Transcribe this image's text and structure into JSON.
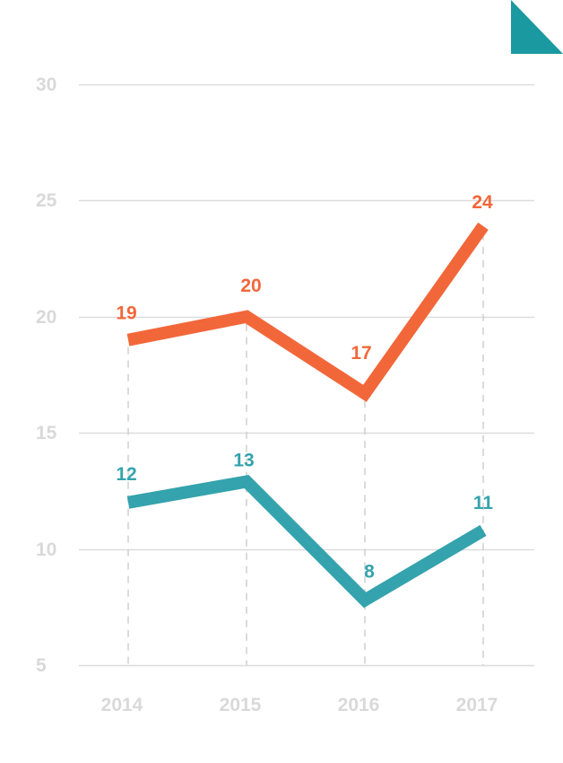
{
  "colors": {
    "orange": "#f2673a",
    "teal": "#34a3ad",
    "grid": "#dcdcdc",
    "tick": "#d9d9d9",
    "corner": "#1a9aa0"
  },
  "chart_data": {
    "type": "line",
    "title": "",
    "xlabel": "",
    "ylabel": "",
    "categories": [
      "2014",
      "2015",
      "2016",
      "2017"
    ],
    "y_ticks": [
      5,
      10,
      15,
      20,
      25,
      30
    ],
    "ylim": [
      5,
      30
    ],
    "grid": true,
    "series": [
      {
        "color_key": "orange",
        "values": [
          19,
          20,
          17,
          24
        ],
        "labels": [
          "19",
          "20",
          "17",
          "24"
        ],
        "plot_values": [
          19,
          20,
          16.7,
          23.9
        ]
      },
      {
        "color_key": "teal",
        "values": [
          12,
          13,
          8,
          11
        ],
        "labels": [
          "12",
          "13",
          "8",
          "11"
        ],
        "plot_values": [
          12,
          12.9,
          7.8,
          10.8
        ]
      }
    ]
  }
}
